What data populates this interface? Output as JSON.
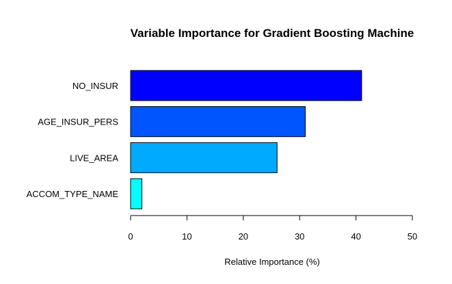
{
  "chart_data": {
    "type": "bar",
    "orientation": "horizontal",
    "title": "Variable Importance for Gradient Boosting Machine",
    "xlabel": "Relative Importance (%)",
    "ylabel": "",
    "categories": [
      "NO_INSUR",
      "AGE_INSUR_PERS",
      "LIVE_AREA",
      "ACCOM_TYPE_NAME"
    ],
    "values": [
      41,
      31,
      26,
      2
    ],
    "colors": [
      "#0000ff",
      "#0055ff",
      "#00aaff",
      "#00ffff"
    ],
    "xlim": [
      0,
      50
    ],
    "xticks": [
      0,
      10,
      20,
      30,
      40,
      50
    ],
    "xtick_labels": [
      "0",
      "10",
      "20",
      "30",
      "40",
      "50"
    ],
    "grid": false,
    "legend": "none"
  }
}
